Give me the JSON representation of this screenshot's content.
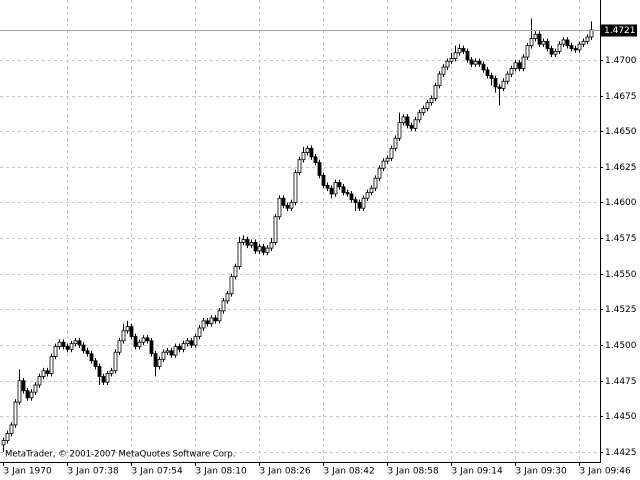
{
  "chart_data": {
    "type": "candlestick",
    "categories": [
      "3 Jan 1970",
      null,
      null,
      null,
      null,
      null,
      null,
      null,
      null,
      null,
      null,
      null,
      null,
      null,
      null,
      null,
      "3 Jan 07:38",
      null,
      null,
      null,
      null,
      null,
      null,
      null,
      null,
      null,
      null,
      null,
      null,
      null,
      null,
      null,
      "3 Jan 07:54",
      null,
      null,
      null,
      null,
      null,
      null,
      null,
      null,
      null,
      null,
      null,
      null,
      null,
      null,
      null,
      "3 Jan 08:10",
      null,
      null,
      null,
      null,
      null,
      null,
      null,
      null,
      null,
      null,
      null,
      null,
      null,
      null,
      null,
      "3 Jan 08:26",
      null,
      null,
      null,
      null,
      null,
      null,
      null,
      null,
      null,
      null,
      null,
      null,
      null,
      null,
      null,
      "3 Jan 08:42",
      null,
      null,
      null,
      null,
      null,
      null,
      null,
      null,
      null,
      null,
      null,
      null,
      null,
      null,
      null,
      "3 Jan 08:58",
      null,
      null,
      null,
      null,
      null,
      null,
      null,
      null,
      null,
      null,
      null,
      null,
      null,
      null,
      null,
      "3 Jan 09:14",
      null,
      null,
      null,
      null,
      null,
      null,
      null,
      null,
      null,
      null,
      null,
      null,
      null,
      null,
      null,
      "3 Jan 09:30",
      null,
      null,
      null,
      null,
      null,
      null,
      null,
      null,
      null,
      null,
      null,
      null,
      null,
      null,
      null,
      "3 Jan 09:46",
      null,
      null,
      null
    ],
    "open": [
      1.443,
      1.4433,
      1.4438,
      1.4444,
      1.446,
      1.4475,
      1.4468,
      1.4463,
      1.4467,
      1.4472,
      1.4478,
      1.4482,
      1.448,
      1.4492,
      1.4499,
      1.4502,
      1.4499,
      1.4497,
      1.4501,
      1.4503,
      1.45,
      1.4496,
      1.4494,
      1.4489,
      1.4485,
      1.4478,
      1.4474,
      1.448,
      1.4482,
      1.4495,
      1.4503,
      1.451,
      1.4513,
      1.4506,
      1.4499,
      1.4502,
      1.4505,
      1.4503,
      1.4494,
      1.4485,
      1.449,
      1.4495,
      1.4496,
      1.4493,
      1.4499,
      1.4497,
      1.4501,
      1.4503,
      1.45,
      1.4506,
      1.4512,
      1.4517,
      1.4515,
      1.4519,
      1.4517,
      1.4524,
      1.4531,
      1.4536,
      1.4548,
      1.4555,
      1.4572,
      1.4574,
      1.457,
      1.4572,
      1.4566,
      1.4569,
      1.4565,
      1.4568,
      1.4572,
      1.459,
      1.4603,
      1.4598,
      1.4596,
      1.46,
      1.4621,
      1.463,
      1.4635,
      1.4638,
      1.4632,
      1.4628,
      1.4619,
      1.4612,
      1.461,
      1.4606,
      1.4614,
      1.4611,
      1.4607,
      1.4606,
      1.4602,
      1.46,
      1.4596,
      1.4603,
      1.4607,
      1.461,
      1.4617,
      1.4624,
      1.4629,
      1.4631,
      1.4638,
      1.4645,
      1.4656,
      1.466,
      1.4654,
      1.4652,
      1.4658,
      1.4663,
      1.4666,
      1.467,
      1.4673,
      1.4682,
      1.469,
      1.4695,
      1.4699,
      1.4701,
      1.4705,
      1.4708,
      1.4706,
      1.47,
      1.4697,
      1.4699,
      1.4697,
      1.4693,
      1.4689,
      1.4687,
      1.4681,
      1.468,
      1.4685,
      1.469,
      1.4694,
      1.4698,
      1.4694,
      1.4702,
      1.471,
      1.4715,
      1.4718,
      1.4711,
      1.4713,
      1.4708,
      1.4704,
      1.4706,
      1.4711,
      1.4714,
      1.471,
      1.4708,
      1.4707,
      1.4711,
      1.4713,
      1.4716
    ],
    "high": [
      1.4435,
      1.444,
      1.4446,
      1.4462,
      1.4483,
      1.4477,
      1.447,
      1.4469,
      1.4474,
      1.448,
      1.4484,
      1.4484,
      1.4494,
      1.4501,
      1.4504,
      1.4504,
      1.4501,
      1.4503,
      1.4505,
      1.4505,
      1.4502,
      1.4498,
      1.4496,
      1.4491,
      1.4487,
      1.448,
      1.4482,
      1.4484,
      1.4497,
      1.4505,
      1.4515,
      1.4517,
      1.4515,
      1.4508,
      1.4504,
      1.4507,
      1.4507,
      1.4505,
      1.4496,
      1.4492,
      1.4497,
      1.4498,
      1.4498,
      1.4501,
      1.4501,
      1.4503,
      1.4505,
      1.4505,
      1.4508,
      1.4514,
      1.4519,
      1.4519,
      1.4521,
      1.4521,
      1.4526,
      1.4533,
      1.4538,
      1.455,
      1.4557,
      1.4576,
      1.4577,
      1.4576,
      1.4574,
      1.4574,
      1.4571,
      1.4571,
      1.457,
      1.4575,
      1.4592,
      1.4605,
      1.4605,
      1.46,
      1.4602,
      1.4623,
      1.4632,
      1.4639,
      1.464,
      1.464,
      1.4634,
      1.463,
      1.4621,
      1.4614,
      1.4612,
      1.4616,
      1.4616,
      1.4613,
      1.4609,
      1.4608,
      1.4604,
      1.4602,
      1.4605,
      1.4609,
      1.4612,
      1.4619,
      1.4626,
      1.4631,
      1.4633,
      1.464,
      1.4647,
      1.4663,
      1.4662,
      1.4662,
      1.4656,
      1.466,
      1.4665,
      1.4668,
      1.4672,
      1.4675,
      1.4684,
      1.4692,
      1.4697,
      1.4701,
      1.4705,
      1.471,
      1.4711,
      1.471,
      1.4708,
      1.4702,
      1.4701,
      1.4701,
      1.4699,
      1.4695,
      1.4691,
      1.4689,
      1.4683,
      1.4687,
      1.4692,
      1.4696,
      1.47,
      1.47,
      1.4704,
      1.4712,
      1.4729,
      1.472,
      1.472,
      1.4715,
      1.4715,
      1.471,
      1.4708,
      1.4713,
      1.4716,
      1.4716,
      1.4712,
      1.471,
      1.4713,
      1.4715,
      1.4718,
      1.4727
    ],
    "low": [
      1.4425,
      1.4431,
      1.4436,
      1.4442,
      1.4458,
      1.4466,
      1.4461,
      1.4461,
      1.4465,
      1.447,
      1.4476,
      1.4478,
      1.4478,
      1.449,
      1.4497,
      1.4497,
      1.4495,
      1.4495,
      1.4499,
      1.4498,
      1.4494,
      1.4492,
      1.4487,
      1.4483,
      1.4472,
      1.4472,
      1.4472,
      1.4478,
      1.448,
      1.4493,
      1.4501,
      1.4508,
      1.4504,
      1.4497,
      1.4497,
      1.45,
      1.4501,
      1.4492,
      1.4478,
      1.4483,
      1.4488,
      1.4493,
      1.4491,
      1.4491,
      1.4495,
      1.4495,
      1.4499,
      1.4498,
      1.4498,
      1.4504,
      1.451,
      1.4513,
      1.4513,
      1.4515,
      1.4515,
      1.4522,
      1.4529,
      1.4534,
      1.4546,
      1.4553,
      1.457,
      1.4568,
      1.4568,
      1.4564,
      1.4564,
      1.4563,
      1.4563,
      1.4566,
      1.457,
      1.4588,
      1.4596,
      1.4594,
      1.4594,
      1.4598,
      1.4619,
      1.4628,
      1.4633,
      1.463,
      1.4626,
      1.4617,
      1.461,
      1.4608,
      1.4603,
      1.4604,
      1.4609,
      1.4605,
      1.4604,
      1.46,
      1.4594,
      1.4594,
      1.4594,
      1.4601,
      1.4605,
      1.4608,
      1.4615,
      1.4622,
      1.4627,
      1.4629,
      1.4636,
      1.4643,
      1.4654,
      1.4652,
      1.465,
      1.465,
      1.4656,
      1.4661,
      1.4664,
      1.4668,
      1.4671,
      1.468,
      1.4688,
      1.4693,
      1.4697,
      1.4699,
      1.4703,
      1.4704,
      1.4698,
      1.4695,
      1.4695,
      1.4695,
      1.4691,
      1.4687,
      1.4682,
      1.4677,
      1.4668,
      1.4678,
      1.4683,
      1.4688,
      1.4692,
      1.4692,
      1.4692,
      1.47,
      1.4708,
      1.4713,
      1.4709,
      1.4709,
      1.4706,
      1.4702,
      1.4702,
      1.4704,
      1.4709,
      1.4708,
      1.4706,
      1.4705,
      1.4705,
      1.4709,
      1.4711,
      1.4714
    ],
    "close": [
      1.4433,
      1.4438,
      1.4444,
      1.446,
      1.4475,
      1.4468,
      1.4463,
      1.4467,
      1.4472,
      1.4478,
      1.4482,
      1.448,
      1.4492,
      1.4499,
      1.4502,
      1.4499,
      1.4497,
      1.4501,
      1.4503,
      1.45,
      1.4496,
      1.4494,
      1.4489,
      1.4485,
      1.4478,
      1.4474,
      1.448,
      1.4482,
      1.4495,
      1.4503,
      1.451,
      1.4513,
      1.4506,
      1.4499,
      1.4502,
      1.4505,
      1.4503,
      1.4494,
      1.4485,
      1.449,
      1.4495,
      1.4496,
      1.4493,
      1.4499,
      1.4497,
      1.4501,
      1.4503,
      1.45,
      1.4506,
      1.4512,
      1.4517,
      1.4515,
      1.4519,
      1.4517,
      1.4524,
      1.4531,
      1.4536,
      1.4548,
      1.4555,
      1.4572,
      1.4574,
      1.457,
      1.4572,
      1.4566,
      1.4569,
      1.4565,
      1.4568,
      1.4572,
      1.459,
      1.4603,
      1.4598,
      1.4596,
      1.46,
      1.4621,
      1.463,
      1.4635,
      1.4638,
      1.4632,
      1.4628,
      1.4619,
      1.4612,
      1.461,
      1.4606,
      1.4614,
      1.4611,
      1.4607,
      1.4606,
      1.4602,
      1.46,
      1.4596,
      1.4603,
      1.4607,
      1.461,
      1.4617,
      1.4624,
      1.4629,
      1.4631,
      1.4638,
      1.4645,
      1.4656,
      1.466,
      1.4654,
      1.4652,
      1.4658,
      1.4663,
      1.4666,
      1.467,
      1.4673,
      1.4682,
      1.469,
      1.4695,
      1.4699,
      1.4701,
      1.4705,
      1.4708,
      1.4706,
      1.47,
      1.4697,
      1.4699,
      1.4697,
      1.4693,
      1.4689,
      1.4687,
      1.4681,
      1.468,
      1.4685,
      1.469,
      1.4694,
      1.4698,
      1.4694,
      1.4702,
      1.471,
      1.4715,
      1.4718,
      1.4711,
      1.4713,
      1.4708,
      1.4704,
      1.4706,
      1.4711,
      1.4714,
      1.471,
      1.4708,
      1.4707,
      1.4711,
      1.4713,
      1.4716,
      1.4721
    ],
    "ylim": [
      1.4418,
      1.4742
    ],
    "yticks": [
      1.4425,
      {
        "value": 1.445,
        "label": "1.4450"
      },
      1.4475,
      {
        "value": 1.45,
        "label": "1.4500"
      },
      1.4525,
      {
        "value": 1.455,
        "label": "1.4550"
      },
      1.4575,
      {
        "value": 1.46,
        "label": "1.4600"
      },
      1.4625,
      {
        "value": 1.465,
        "label": "1.4650"
      },
      1.4675,
      {
        "value": 1.47,
        "label": "1.4700"
      }
    ],
    "last_price": 1.4721,
    "grid": true,
    "color": "#000000",
    "copyright": "MetaTrader, © 2001-2007 MetaQuotes Software Corp."
  }
}
